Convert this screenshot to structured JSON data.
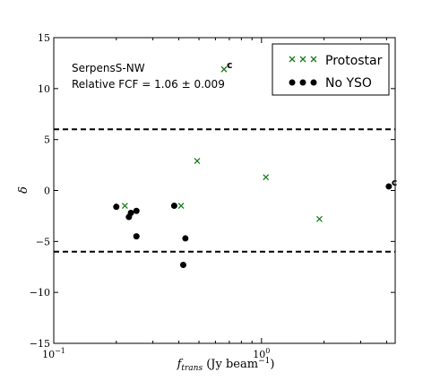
{
  "chart_data": {
    "type": "scatter",
    "xscale": "log",
    "xlim": [
      0.1,
      4.4
    ],
    "ylim": [
      -15,
      15
    ],
    "xlabel_main": "f",
    "xlabel_sub": "trans",
    "xlabel_unit": " (Jy beam",
    "xlabel_exp": "−1",
    "xlabel_close": ")",
    "ylabel": "δ",
    "x_ticks": [
      {
        "value": 0.1,
        "base": "10",
        "exp": "−1"
      },
      {
        "value": 1,
        "base": "10",
        "exp": "0"
      }
    ],
    "y_ticks": [
      {
        "value": -15,
        "label": "−15"
      },
      {
        "value": -10,
        "label": "−10"
      },
      {
        "value": -5,
        "label": "−5"
      },
      {
        "value": 0,
        "label": "0"
      },
      {
        "value": 5,
        "label": "5"
      },
      {
        "value": 10,
        "label": "10"
      },
      {
        "value": 15,
        "label": "15"
      }
    ],
    "threshold_lines": [
      6,
      -6
    ],
    "annotations": [
      "SerpensS-NW",
      "Relative FCF = 1.06 ± 0.009"
    ],
    "legend": {
      "placement": "top-right"
    },
    "series": [
      {
        "name": "Protostar",
        "marker": "x",
        "color": "#1a7a1a",
        "points": [
          {
            "x": 0.22,
            "y": -1.5
          },
          {
            "x": 0.41,
            "y": -1.5
          },
          {
            "x": 0.49,
            "y": 2.9
          },
          {
            "x": 0.66,
            "y": 11.9,
            "label": "c"
          },
          {
            "x": 1.05,
            "y": 1.3
          },
          {
            "x": 1.9,
            "y": -2.8
          }
        ]
      },
      {
        "name": "No YSO",
        "marker": "o",
        "color": "#000000",
        "points": [
          {
            "x": 0.2,
            "y": -1.6
          },
          {
            "x": 0.23,
            "y": -2.6
          },
          {
            "x": 0.235,
            "y": -2.2
          },
          {
            "x": 0.25,
            "y": -2.0
          },
          {
            "x": 0.25,
            "y": -4.5
          },
          {
            "x": 0.38,
            "y": -1.5
          },
          {
            "x": 0.42,
            "y": -7.3
          },
          {
            "x": 0.43,
            "y": -4.7
          },
          {
            "x": 4.1,
            "y": 0.4,
            "label": "c"
          }
        ]
      }
    ]
  }
}
